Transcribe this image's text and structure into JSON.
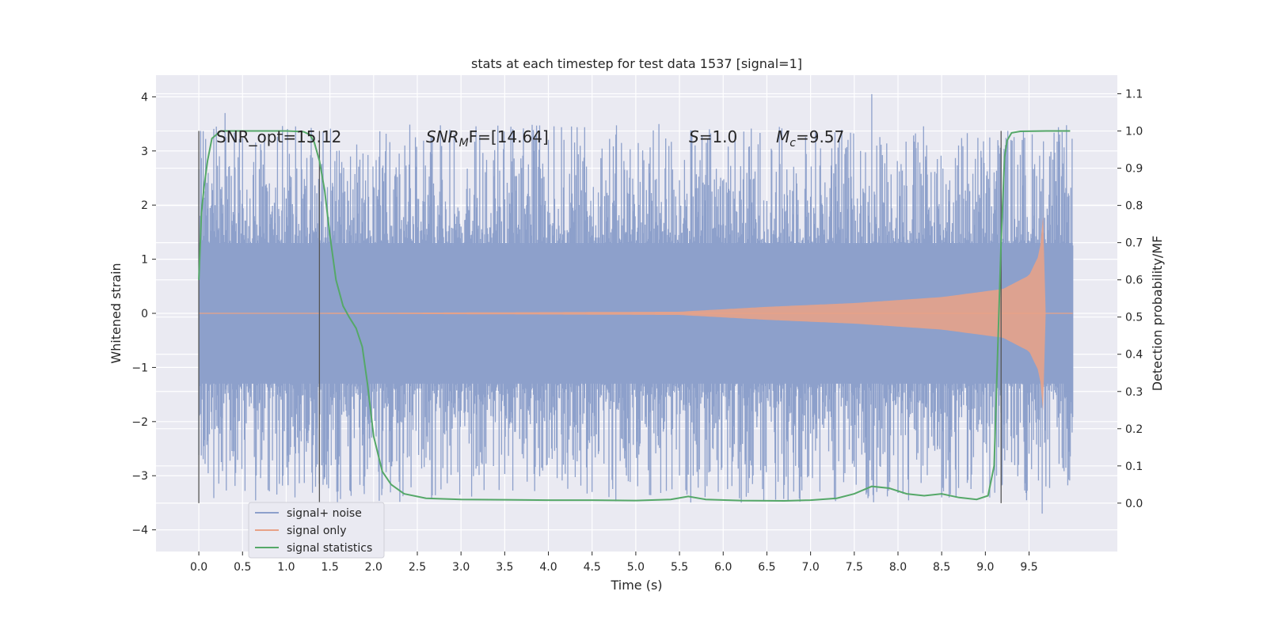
{
  "chart_data": {
    "type": "line",
    "title": "stats at each timestep for test data 1537 [signal=1]",
    "xlabel": "Time (s)",
    "ylabel": "Whitened strain",
    "y2label": "Detection probability/MF",
    "xlim": [
      -0.49,
      10.51
    ],
    "ylim": [
      -4.4,
      4.4
    ],
    "y2lim": [
      -0.13,
      1.15
    ],
    "xticks": [
      "0.0",
      "0.5",
      "1.0",
      "1.5",
      "2.0",
      "2.5",
      "3.0",
      "3.5",
      "4.0",
      "4.5",
      "5.0",
      "5.5",
      "6.0",
      "6.5",
      "7.0",
      "7.5",
      "8.0",
      "8.5",
      "9.0",
      "9.5"
    ],
    "yticks": [
      "4",
      "3",
      "2",
      "1",
      "0",
      "−1",
      "−2",
      "−3",
      "−4"
    ],
    "y2ticks": [
      "1.1",
      "1.0",
      "0.9",
      "0.8",
      "0.7",
      "0.6",
      "0.5",
      "0.4",
      "0.3",
      "0.2",
      "0.1",
      "0.0"
    ],
    "grid": true,
    "legend": {
      "position": "lower-left",
      "entries": [
        {
          "label": "signal+ noise",
          "color": "#8da0cb"
        },
        {
          "label": "signal only",
          "color": "#e8a287"
        },
        {
          "label": "signal statistics",
          "color": "#55a868"
        }
      ]
    },
    "annotations": {
      "snr_opt": "SNR_opt=15.12",
      "snr_mf_main": "SNR",
      "snr_mf_sub": "M",
      "snr_mf_rest": "F=[14.64]",
      "s_main": "S",
      "s_rest": "=1.0",
      "mc_main": "M",
      "mc_sub": "c",
      "mc_rest": "=9.57"
    },
    "vlines": [
      0.0,
      1.38,
      9.18
    ],
    "series": [
      {
        "name": "signal+ noise",
        "color": "#8da0cb",
        "x_range": [
          0.0,
          10.0
        ],
        "band_amplitude": 1.3,
        "peak_amplitude": 3.5,
        "peaks": [
          [
            0.3,
            3.7
          ],
          [
            1.1,
            -3.4
          ],
          [
            4.5,
            -3.3
          ],
          [
            7.7,
            4.05
          ],
          [
            8.5,
            -3.4
          ],
          [
            9.15,
            3.1
          ],
          [
            9.65,
            -3.7
          ]
        ]
      },
      {
        "name": "signal only",
        "color": "#e8a287",
        "x_range": [
          0.0,
          9.69
        ],
        "amplitude_points": [
          [
            0.0,
            0.0
          ],
          [
            5.5,
            0.03
          ],
          [
            6.5,
            0.12
          ],
          [
            7.5,
            0.19
          ],
          [
            8.5,
            0.3
          ],
          [
            9.2,
            0.45
          ],
          [
            9.5,
            0.7
          ],
          [
            9.62,
            1.1
          ],
          [
            9.66,
            1.8
          ],
          [
            9.69,
            0.0
          ]
        ]
      },
      {
        "name": "signal statistics",
        "color": "#55a868",
        "axis": "right",
        "x": [
          0.0,
          0.03,
          0.06,
          0.1,
          0.15,
          0.25,
          0.5,
          0.8,
          1.0,
          1.2,
          1.27,
          1.32,
          1.38,
          1.44,
          1.5,
          1.57,
          1.65,
          1.72,
          1.8,
          1.87,
          1.93,
          2.0,
          2.1,
          2.2,
          2.35,
          2.6,
          3.0,
          3.5,
          4.0,
          4.5,
          5.0,
          5.4,
          5.6,
          5.8,
          6.2,
          6.7,
          7.0,
          7.3,
          7.5,
          7.7,
          7.9,
          8.1,
          8.3,
          8.5,
          8.7,
          8.9,
          9.03,
          9.1,
          9.14,
          9.18,
          9.22,
          9.25,
          9.3,
          9.4,
          9.7,
          9.97
        ],
        "y": [
          0.6,
          0.78,
          0.85,
          0.92,
          0.98,
          1.0,
          1.0,
          1.0,
          1.0,
          0.998,
          0.99,
          0.97,
          0.92,
          0.84,
          0.72,
          0.6,
          0.53,
          0.5,
          0.47,
          0.42,
          0.32,
          0.18,
          0.085,
          0.05,
          0.025,
          0.013,
          0.01,
          0.009,
          0.008,
          0.008,
          0.007,
          0.01,
          0.018,
          0.01,
          0.007,
          0.006,
          0.008,
          0.013,
          0.025,
          0.045,
          0.04,
          0.025,
          0.02,
          0.025,
          0.015,
          0.01,
          0.02,
          0.1,
          0.4,
          0.7,
          0.93,
          0.975,
          0.995,
          0.999,
          1.0,
          1.0
        ]
      }
    ]
  }
}
